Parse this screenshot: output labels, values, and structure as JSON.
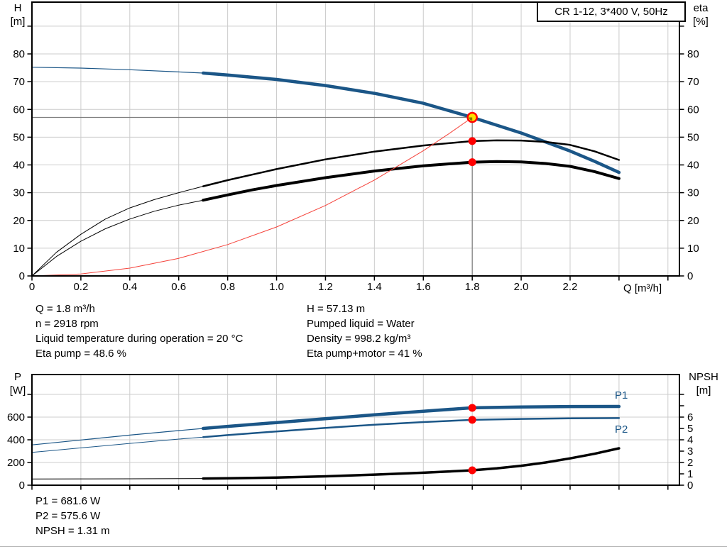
{
  "title_box": {
    "label": "CR 1-12, 3*400 V, 50Hz"
  },
  "colors": {
    "curve_blue": "#1b5687",
    "curve_black": "#000000",
    "curve_red": "#f5423a",
    "grid": "#cccccc",
    "axis": "#000000",
    "guide": "#7d7d7d",
    "marker_red": "#ff0000",
    "duty_fill": "#ffe000",
    "duty_wedge": "#6b6b00"
  },
  "info_block": {
    "left": [
      "Q = 1.8 m³/h",
      "n = 2918 rpm",
      "Liquid temperature during operation = 20 °C",
      "Eta pump = 48.6 %"
    ],
    "right": [
      "H = 57.13 m",
      "Pumped liquid = Water",
      "Density = 998.2 kg/m³",
      "Eta pump+motor = 41 %"
    ]
  },
  "result_block": [
    "P1 = 681.6 W",
    "P2 = 575.6 W",
    "NPSH = 1.31 m"
  ],
  "chart_data": [
    {
      "type": "line",
      "id": "qh-eta-chart",
      "xlabel": "Q [m³/h]",
      "ylabel_left": [
        "H",
        "[m]"
      ],
      "ylabel_right": [
        "eta",
        "[%]"
      ],
      "xlim": [
        0,
        2.647
      ],
      "ylim_left": [
        0,
        98.66
      ],
      "ylim_right": [
        0,
        98.66
      ],
      "grid": true,
      "x_ticks": [
        {
          "v": 0,
          "l": "0"
        },
        {
          "v": 0.2,
          "l": "0.2"
        },
        {
          "v": 0.4,
          "l": "0.4"
        },
        {
          "v": 0.6,
          "l": "0.6"
        },
        {
          "v": 0.8,
          "l": "0.8"
        },
        {
          "v": 1,
          "l": "1.0"
        },
        {
          "v": 1.2,
          "l": "1.2"
        },
        {
          "v": 1.4,
          "l": "1.4"
        },
        {
          "v": 1.6,
          "l": "1.6"
        },
        {
          "v": 1.8,
          "l": "1.8"
        },
        {
          "v": 2,
          "l": "2.0"
        },
        {
          "v": 2.2,
          "l": "2.2"
        },
        {
          "v": 2.4,
          "l": ""
        },
        {
          "v": 2.6,
          "l": ""
        }
      ],
      "y_ticks_left": [
        {
          "v": 0,
          "l": "0"
        },
        {
          "v": 10,
          "l": "10"
        },
        {
          "v": 20,
          "l": "20"
        },
        {
          "v": 30,
          "l": "30"
        },
        {
          "v": 40,
          "l": "40"
        },
        {
          "v": 50,
          "l": "50"
        },
        {
          "v": 60,
          "l": "60"
        },
        {
          "v": 70,
          "l": "70"
        },
        {
          "v": 80,
          "l": "80"
        },
        {
          "v": 90,
          "l": ""
        }
      ],
      "y_ticks_right": [
        {
          "v": 0,
          "l": "0"
        },
        {
          "v": 10,
          "l": "10"
        },
        {
          "v": 20,
          "l": "20"
        },
        {
          "v": 30,
          "l": "30"
        },
        {
          "v": 40,
          "l": "40"
        },
        {
          "v": 50,
          "l": "50"
        },
        {
          "v": 60,
          "l": "60"
        },
        {
          "v": 70,
          "l": "70"
        },
        {
          "v": 80,
          "l": "80"
        },
        {
          "v": 90,
          "l": ""
        }
      ],
      "series": [
        {
          "name": "pump-curve-H",
          "axis": "left",
          "color_key": "curve_blue",
          "thin_width": 1.2,
          "thick_width": 4.5,
          "thick_from": 0.7,
          "points": [
            [
              0,
              75.2
            ],
            [
              0.2,
              74.9
            ],
            [
              0.4,
              74.3
            ],
            [
              0.6,
              73.5
            ],
            [
              0.7,
              73.1
            ],
            [
              0.8,
              72.4
            ],
            [
              1,
              70.8
            ],
            [
              1.2,
              68.6
            ],
            [
              1.4,
              65.8
            ],
            [
              1.6,
              62.2
            ],
            [
              1.8,
              57.13
            ],
            [
              2,
              51.5
            ],
            [
              2.2,
              45
            ],
            [
              2.3,
              41.3
            ],
            [
              2.4,
              37.3
            ]
          ]
        },
        {
          "name": "eta-pump-curve",
          "axis": "right",
          "color_key": "curve_black",
          "thin_width": 1,
          "thick_width": 2.5,
          "thick_from": 0.7,
          "points": [
            [
              0,
              0
            ],
            [
              0.1,
              8.5
            ],
            [
              0.2,
              15
            ],
            [
              0.3,
              20.5
            ],
            [
              0.4,
              24.5
            ],
            [
              0.5,
              27.5
            ],
            [
              0.6,
              30
            ],
            [
              0.7,
              32.3
            ],
            [
              0.8,
              34.5
            ],
            [
              0.9,
              36.5
            ],
            [
              1,
              38.5
            ],
            [
              1.2,
              42
            ],
            [
              1.4,
              44.8
            ],
            [
              1.6,
              47
            ],
            [
              1.8,
              48.6
            ],
            [
              1.9,
              48.85
            ],
            [
              2,
              48.8
            ],
            [
              2.1,
              48.3
            ],
            [
              2.2,
              47.2
            ],
            [
              2.3,
              44.9
            ],
            [
              2.4,
              41.8
            ]
          ]
        },
        {
          "name": "eta-pump-motor-curve",
          "axis": "right",
          "color_key": "curve_black",
          "thin_width": 1,
          "thick_width": 4,
          "thick_from": 0.7,
          "points": [
            [
              0,
              0
            ],
            [
              0.1,
              7
            ],
            [
              0.2,
              12.5
            ],
            [
              0.3,
              17
            ],
            [
              0.4,
              20.5
            ],
            [
              0.5,
              23.3
            ],
            [
              0.6,
              25.5
            ],
            [
              0.7,
              27.3
            ],
            [
              0.8,
              29.2
            ],
            [
              0.9,
              31
            ],
            [
              1,
              32.6
            ],
            [
              1.2,
              35.4
            ],
            [
              1.4,
              37.8
            ],
            [
              1.6,
              39.7
            ],
            [
              1.8,
              41
            ],
            [
              1.9,
              41.2
            ],
            [
              2,
              41.1
            ],
            [
              2.1,
              40.5
            ],
            [
              2.2,
              39.5
            ],
            [
              2.3,
              37.6
            ],
            [
              2.4,
              35.1
            ]
          ]
        },
        {
          "name": "system-curve",
          "axis": "left",
          "color_key": "curve_red",
          "thin_width": 1,
          "thick_width": 1,
          "thick_from": 99,
          "points": [
            [
              0,
              0
            ],
            [
              0.2,
              0.71
            ],
            [
              0.4,
              2.82
            ],
            [
              0.6,
              6.35
            ],
            [
              0.8,
              11.29
            ],
            [
              1,
              17.63
            ],
            [
              1.2,
              25.39
            ],
            [
              1.4,
              34.56
            ],
            [
              1.6,
              45.14
            ],
            [
              1.7,
              50.96
            ],
            [
              1.8,
              57.13
            ]
          ]
        }
      ],
      "guide_lines": [
        {
          "dir": "h",
          "axis": "left",
          "v": 57.13,
          "x1": 0,
          "x2": 1.8
        },
        {
          "dir": "v",
          "axis": "left",
          "x": 1.8,
          "v1": 0,
          "v2": 57.13
        }
      ],
      "markers": [
        {
          "q": 1.8,
          "v": 57.13,
          "axis": "left",
          "style": "duty",
          "name": "duty-point-marker"
        },
        {
          "q": 1.8,
          "v": 48.6,
          "axis": "right",
          "style": "dot",
          "name": "eta-pump-marker"
        },
        {
          "q": 1.8,
          "v": 41,
          "axis": "right",
          "style": "dot",
          "name": "eta-pump-motor-marker"
        }
      ],
      "series_labels": []
    },
    {
      "type": "line",
      "id": "power-npsh-chart",
      "xlabel": "",
      "ylabel_left": [
        "P",
        "[W]"
      ],
      "ylabel_right": [
        "NPSH",
        "[m]"
      ],
      "xlim": [
        0,
        2.647
      ],
      "ylim_left": [
        0,
        975
      ],
      "ylim_right": [
        0,
        9.75
      ],
      "grid": true,
      "x_ticks": [
        {
          "v": 0,
          "l": ""
        },
        {
          "v": 0.2,
          "l": ""
        },
        {
          "v": 0.4,
          "l": ""
        },
        {
          "v": 0.6,
          "l": ""
        },
        {
          "v": 0.8,
          "l": ""
        },
        {
          "v": 1,
          "l": ""
        },
        {
          "v": 1.2,
          "l": ""
        },
        {
          "v": 1.4,
          "l": ""
        },
        {
          "v": 1.6,
          "l": ""
        },
        {
          "v": 1.8,
          "l": ""
        },
        {
          "v": 2,
          "l": ""
        },
        {
          "v": 2.2,
          "l": ""
        },
        {
          "v": 2.4,
          "l": ""
        },
        {
          "v": 2.6,
          "l": ""
        }
      ],
      "y_ticks_left": [
        {
          "v": 0,
          "l": "0"
        },
        {
          "v": 200,
          "l": "200"
        },
        {
          "v": 400,
          "l": "400"
        },
        {
          "v": 600,
          "l": "600"
        },
        {
          "v": 800,
          "l": ""
        }
      ],
      "y_ticks_right": [
        {
          "v": 0,
          "l": "0"
        },
        {
          "v": 1,
          "l": "1"
        },
        {
          "v": 2,
          "l": "2"
        },
        {
          "v": 3,
          "l": "3"
        },
        {
          "v": 4,
          "l": "4"
        },
        {
          "v": 5,
          "l": "5"
        },
        {
          "v": 6,
          "l": "6"
        },
        {
          "v": 7,
          "l": ""
        },
        {
          "v": 8,
          "l": ""
        }
      ],
      "series": [
        {
          "name": "p1-curve",
          "axis": "left",
          "color_key": "curve_blue",
          "thin_width": 1.2,
          "thick_width": 4.5,
          "thick_from": 0.7,
          "points": [
            [
              0,
              355
            ],
            [
              0.2,
              398
            ],
            [
              0.4,
              441
            ],
            [
              0.6,
              481
            ],
            [
              0.7,
              500
            ],
            [
              0.8,
              518
            ],
            [
              1,
              552
            ],
            [
              1.2,
              586
            ],
            [
              1.4,
              620
            ],
            [
              1.6,
              652
            ],
            [
              1.8,
              681.6
            ],
            [
              2,
              689
            ],
            [
              2.2,
              693
            ],
            [
              2.4,
              694
            ]
          ]
        },
        {
          "name": "p2-curve",
          "axis": "left",
          "color_key": "curve_blue",
          "thin_width": 1,
          "thick_width": 2.5,
          "thick_from": 0.7,
          "points": [
            [
              0,
              289
            ],
            [
              0.2,
              329
            ],
            [
              0.4,
              368
            ],
            [
              0.6,
              406
            ],
            [
              0.7,
              424
            ],
            [
              0.8,
              441
            ],
            [
              1,
              474
            ],
            [
              1.2,
              505
            ],
            [
              1.4,
              533
            ],
            [
              1.6,
              556
            ],
            [
              1.8,
              575.6
            ],
            [
              2,
              584
            ],
            [
              2.2,
              589
            ],
            [
              2.4,
              591
            ]
          ]
        },
        {
          "name": "npsh-curve",
          "axis": "right",
          "color_key": "curve_black",
          "thin_width": 1,
          "thick_width": 3.5,
          "thick_from": 0.7,
          "points": [
            [
              0,
              0.55
            ],
            [
              0.2,
              0.555
            ],
            [
              0.4,
              0.56
            ],
            [
              0.6,
              0.58
            ],
            [
              0.7,
              0.59
            ],
            [
              0.8,
              0.61
            ],
            [
              1,
              0.67
            ],
            [
              1.2,
              0.78
            ],
            [
              1.4,
              0.93
            ],
            [
              1.6,
              1.1
            ],
            [
              1.8,
              1.31
            ],
            [
              1.9,
              1.48
            ],
            [
              2,
              1.71
            ],
            [
              2.1,
              2
            ],
            [
              2.2,
              2.36
            ],
            [
              2.3,
              2.77
            ],
            [
              2.4,
              3.25
            ]
          ]
        }
      ],
      "guide_lines": [],
      "markers": [
        {
          "q": 1.8,
          "v": 681.6,
          "axis": "left",
          "style": "dot",
          "name": "p1-marker"
        },
        {
          "q": 1.8,
          "v": 575.6,
          "axis": "left",
          "style": "dot",
          "name": "p2-marker"
        },
        {
          "q": 1.8,
          "v": 1.31,
          "axis": "right",
          "style": "dot",
          "name": "npsh-marker"
        }
      ],
      "series_labels": [
        {
          "text": "P1",
          "q": 2.383,
          "v": 762,
          "axis": "left",
          "color_key": "curve_blue",
          "name": "p1-label"
        },
        {
          "text": "P2",
          "q": 2.383,
          "v": 462,
          "axis": "left",
          "color_key": "curve_blue",
          "name": "p2-label"
        }
      ]
    }
  ]
}
